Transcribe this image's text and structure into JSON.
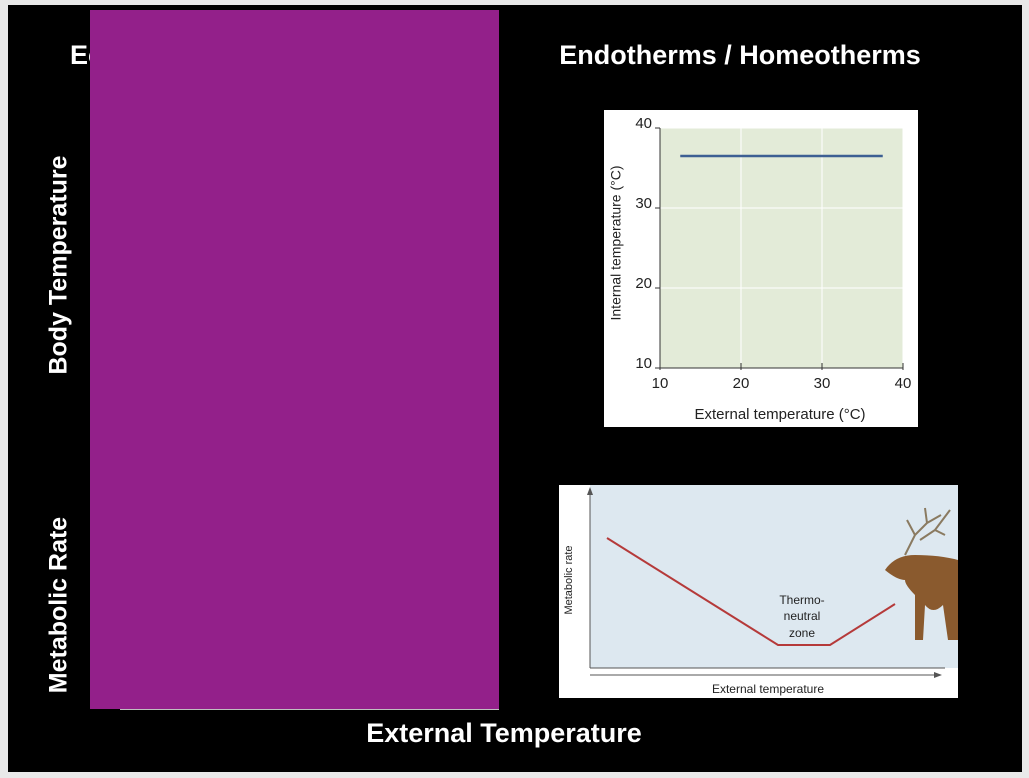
{
  "slide": {
    "left_heading": "Ec",
    "title": "Endotherms / Homeotherms",
    "row_labels": [
      "Body Temperature",
      "Metabolic Rate"
    ],
    "x_label": "External Temperature"
  },
  "chart_data": {
    "type": "line",
    "x_label": "External temperature (°C)",
    "y_label": "Internal temperature (°C)",
    "x": [
      12.5,
      37.5
    ],
    "series": [
      {
        "color": "#3d5f93",
        "values": [
          36.5,
          36.5
        ]
      }
    ],
    "xlim": [
      10,
      40
    ],
    "ylim": [
      10,
      40
    ],
    "xticks": [
      10,
      20,
      30,
      40
    ],
    "yticks": [
      10,
      20,
      30,
      40
    ],
    "grid": true
  },
  "metabolic_diagram": {
    "y_label": "Metabolic rate",
    "x_label": "External temperature",
    "annotation": [
      "Thermo-",
      "neutral",
      "zone"
    ]
  }
}
